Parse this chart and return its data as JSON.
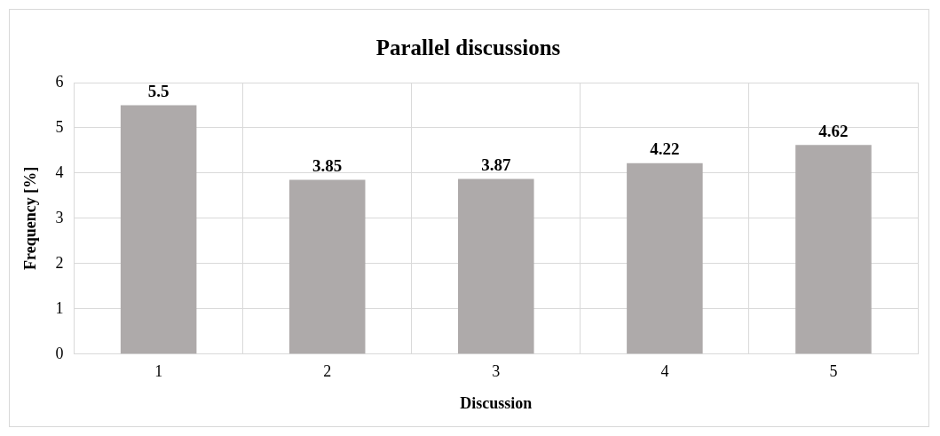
{
  "chart_data": {
    "type": "bar",
    "title": "Parallel discussions",
    "xlabel": "Discussion",
    "ylabel": "Frequency [%]",
    "categories": [
      "1",
      "2",
      "3",
      "4",
      "5"
    ],
    "values": [
      5.5,
      3.85,
      3.87,
      4.22,
      4.62
    ],
    "color": "#aeaaaa",
    "ylim": [
      0,
      6
    ],
    "yticks": [
      0,
      1,
      2,
      3,
      4,
      5,
      6
    ],
    "grid": true,
    "data_labels": true
  }
}
